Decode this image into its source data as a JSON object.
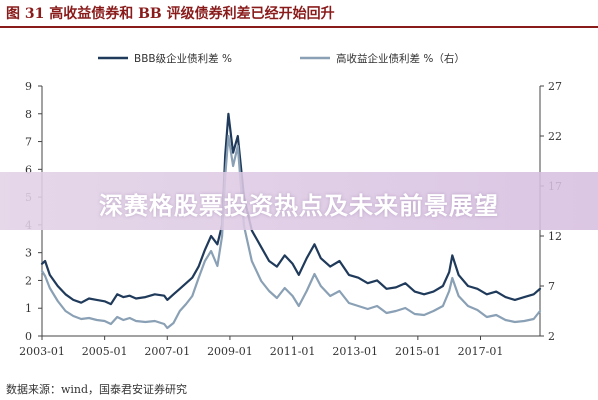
{
  "header": {
    "figure_title": "图 31  高收益债券和 BB 评级债券利差已经开始回升"
  },
  "source": "数据来源：wind，国泰君安证券研究",
  "overlay": {
    "banner_text": "深赛格股票投资热点及未来前景展望"
  },
  "colors": {
    "series1": "#1f3a5a",
    "series2": "#8aa0b5",
    "title": "#8a1b1b"
  },
  "chart_data": {
    "type": "line",
    "x_tick_labels": [
      "2003-01",
      "2005-01",
      "2007-01",
      "2009-01",
      "2011-01",
      "2013-01",
      "2015-01",
      "2017-01"
    ],
    "x_ticks": [
      2003,
      2005,
      2007,
      2009,
      2011,
      2013,
      2015,
      2017
    ],
    "xlim": [
      2003,
      2018.9
    ],
    "left_axis": {
      "ylim": [
        0,
        9
      ],
      "ticks": [
        0,
        1,
        2,
        3,
        4,
        5,
        6,
        7,
        8,
        9
      ]
    },
    "right_axis": {
      "ylim": [
        2,
        27
      ],
      "ticks": [
        2,
        7,
        12,
        17,
        22,
        27
      ]
    },
    "legend_position": "top-center",
    "series": [
      {
        "name": "BBB级企业债利差 %",
        "axis": "left",
        "x": [
          2003.0,
          2003.1,
          2003.25,
          2003.5,
          2003.75,
          2004.0,
          2004.25,
          2004.5,
          2004.75,
          2005.0,
          2005.2,
          2005.4,
          2005.6,
          2005.8,
          2006.0,
          2006.3,
          2006.6,
          2006.9,
          2007.0,
          2007.2,
          2007.4,
          2007.6,
          2007.8,
          2008.0,
          2008.2,
          2008.4,
          2008.6,
          2008.75,
          2008.85,
          2008.95,
          2009.1,
          2009.25,
          2009.45,
          2009.7,
          2010.0,
          2010.25,
          2010.5,
          2010.75,
          2011.0,
          2011.2,
          2011.45,
          2011.7,
          2011.9,
          2012.2,
          2012.5,
          2012.8,
          2013.1,
          2013.4,
          2013.7,
          2014.0,
          2014.3,
          2014.6,
          2014.9,
          2015.2,
          2015.5,
          2015.8,
          2016.0,
          2016.1,
          2016.3,
          2016.6,
          2016.9,
          2017.2,
          2017.5,
          2017.8,
          2018.1,
          2018.4,
          2018.7,
          2018.9
        ],
        "values": [
          2.6,
          2.7,
          2.2,
          1.8,
          1.5,
          1.3,
          1.2,
          1.35,
          1.3,
          1.25,
          1.15,
          1.5,
          1.4,
          1.45,
          1.35,
          1.4,
          1.5,
          1.45,
          1.3,
          1.5,
          1.7,
          1.9,
          2.1,
          2.5,
          3.1,
          3.6,
          3.3,
          4.0,
          6.5,
          8.0,
          6.6,
          7.2,
          5.0,
          3.8,
          3.2,
          2.7,
          2.5,
          2.9,
          2.6,
          2.2,
          2.8,
          3.3,
          2.8,
          2.5,
          2.7,
          2.2,
          2.1,
          1.9,
          2.0,
          1.7,
          1.75,
          1.9,
          1.6,
          1.5,
          1.6,
          1.8,
          2.3,
          2.9,
          2.2,
          1.8,
          1.7,
          1.5,
          1.6,
          1.4,
          1.3,
          1.4,
          1.5,
          1.7
        ]
      },
      {
        "name": "高收益企业债利差 %（右）",
        "axis": "right",
        "x": [
          2003.0,
          2003.1,
          2003.25,
          2003.5,
          2003.75,
          2004.0,
          2004.25,
          2004.5,
          2004.75,
          2005.0,
          2005.2,
          2005.4,
          2005.6,
          2005.8,
          2006.0,
          2006.3,
          2006.6,
          2006.9,
          2007.0,
          2007.2,
          2007.4,
          2007.6,
          2007.8,
          2008.0,
          2008.2,
          2008.4,
          2008.6,
          2008.75,
          2008.85,
          2008.95,
          2009.1,
          2009.25,
          2009.45,
          2009.7,
          2010.0,
          2010.25,
          2010.5,
          2010.75,
          2011.0,
          2011.2,
          2011.45,
          2011.7,
          2011.9,
          2012.2,
          2012.5,
          2012.8,
          2013.1,
          2013.4,
          2013.7,
          2014.0,
          2014.3,
          2014.6,
          2014.9,
          2015.2,
          2015.5,
          2015.8,
          2016.0,
          2016.1,
          2016.3,
          2016.6,
          2016.9,
          2017.2,
          2017.5,
          2017.8,
          2018.1,
          2018.4,
          2018.7,
          2018.9
        ],
        "values": [
          8.5,
          8.0,
          6.8,
          5.5,
          4.5,
          4.0,
          3.7,
          3.8,
          3.6,
          3.5,
          3.2,
          3.9,
          3.6,
          3.8,
          3.5,
          3.4,
          3.5,
          3.2,
          2.8,
          3.3,
          4.5,
          5.2,
          6.0,
          7.8,
          9.5,
          10.5,
          9.0,
          12.0,
          18.0,
          22.0,
          19.0,
          21.0,
          13.0,
          9.5,
          7.5,
          6.5,
          5.8,
          6.8,
          6.0,
          5.0,
          6.5,
          8.2,
          7.0,
          6.0,
          6.5,
          5.3,
          5.0,
          4.7,
          5.0,
          4.3,
          4.5,
          4.8,
          4.2,
          4.1,
          4.5,
          5.0,
          6.5,
          7.8,
          6.0,
          5.0,
          4.6,
          3.9,
          4.1,
          3.6,
          3.4,
          3.5,
          3.7,
          4.5
        ]
      }
    ]
  }
}
